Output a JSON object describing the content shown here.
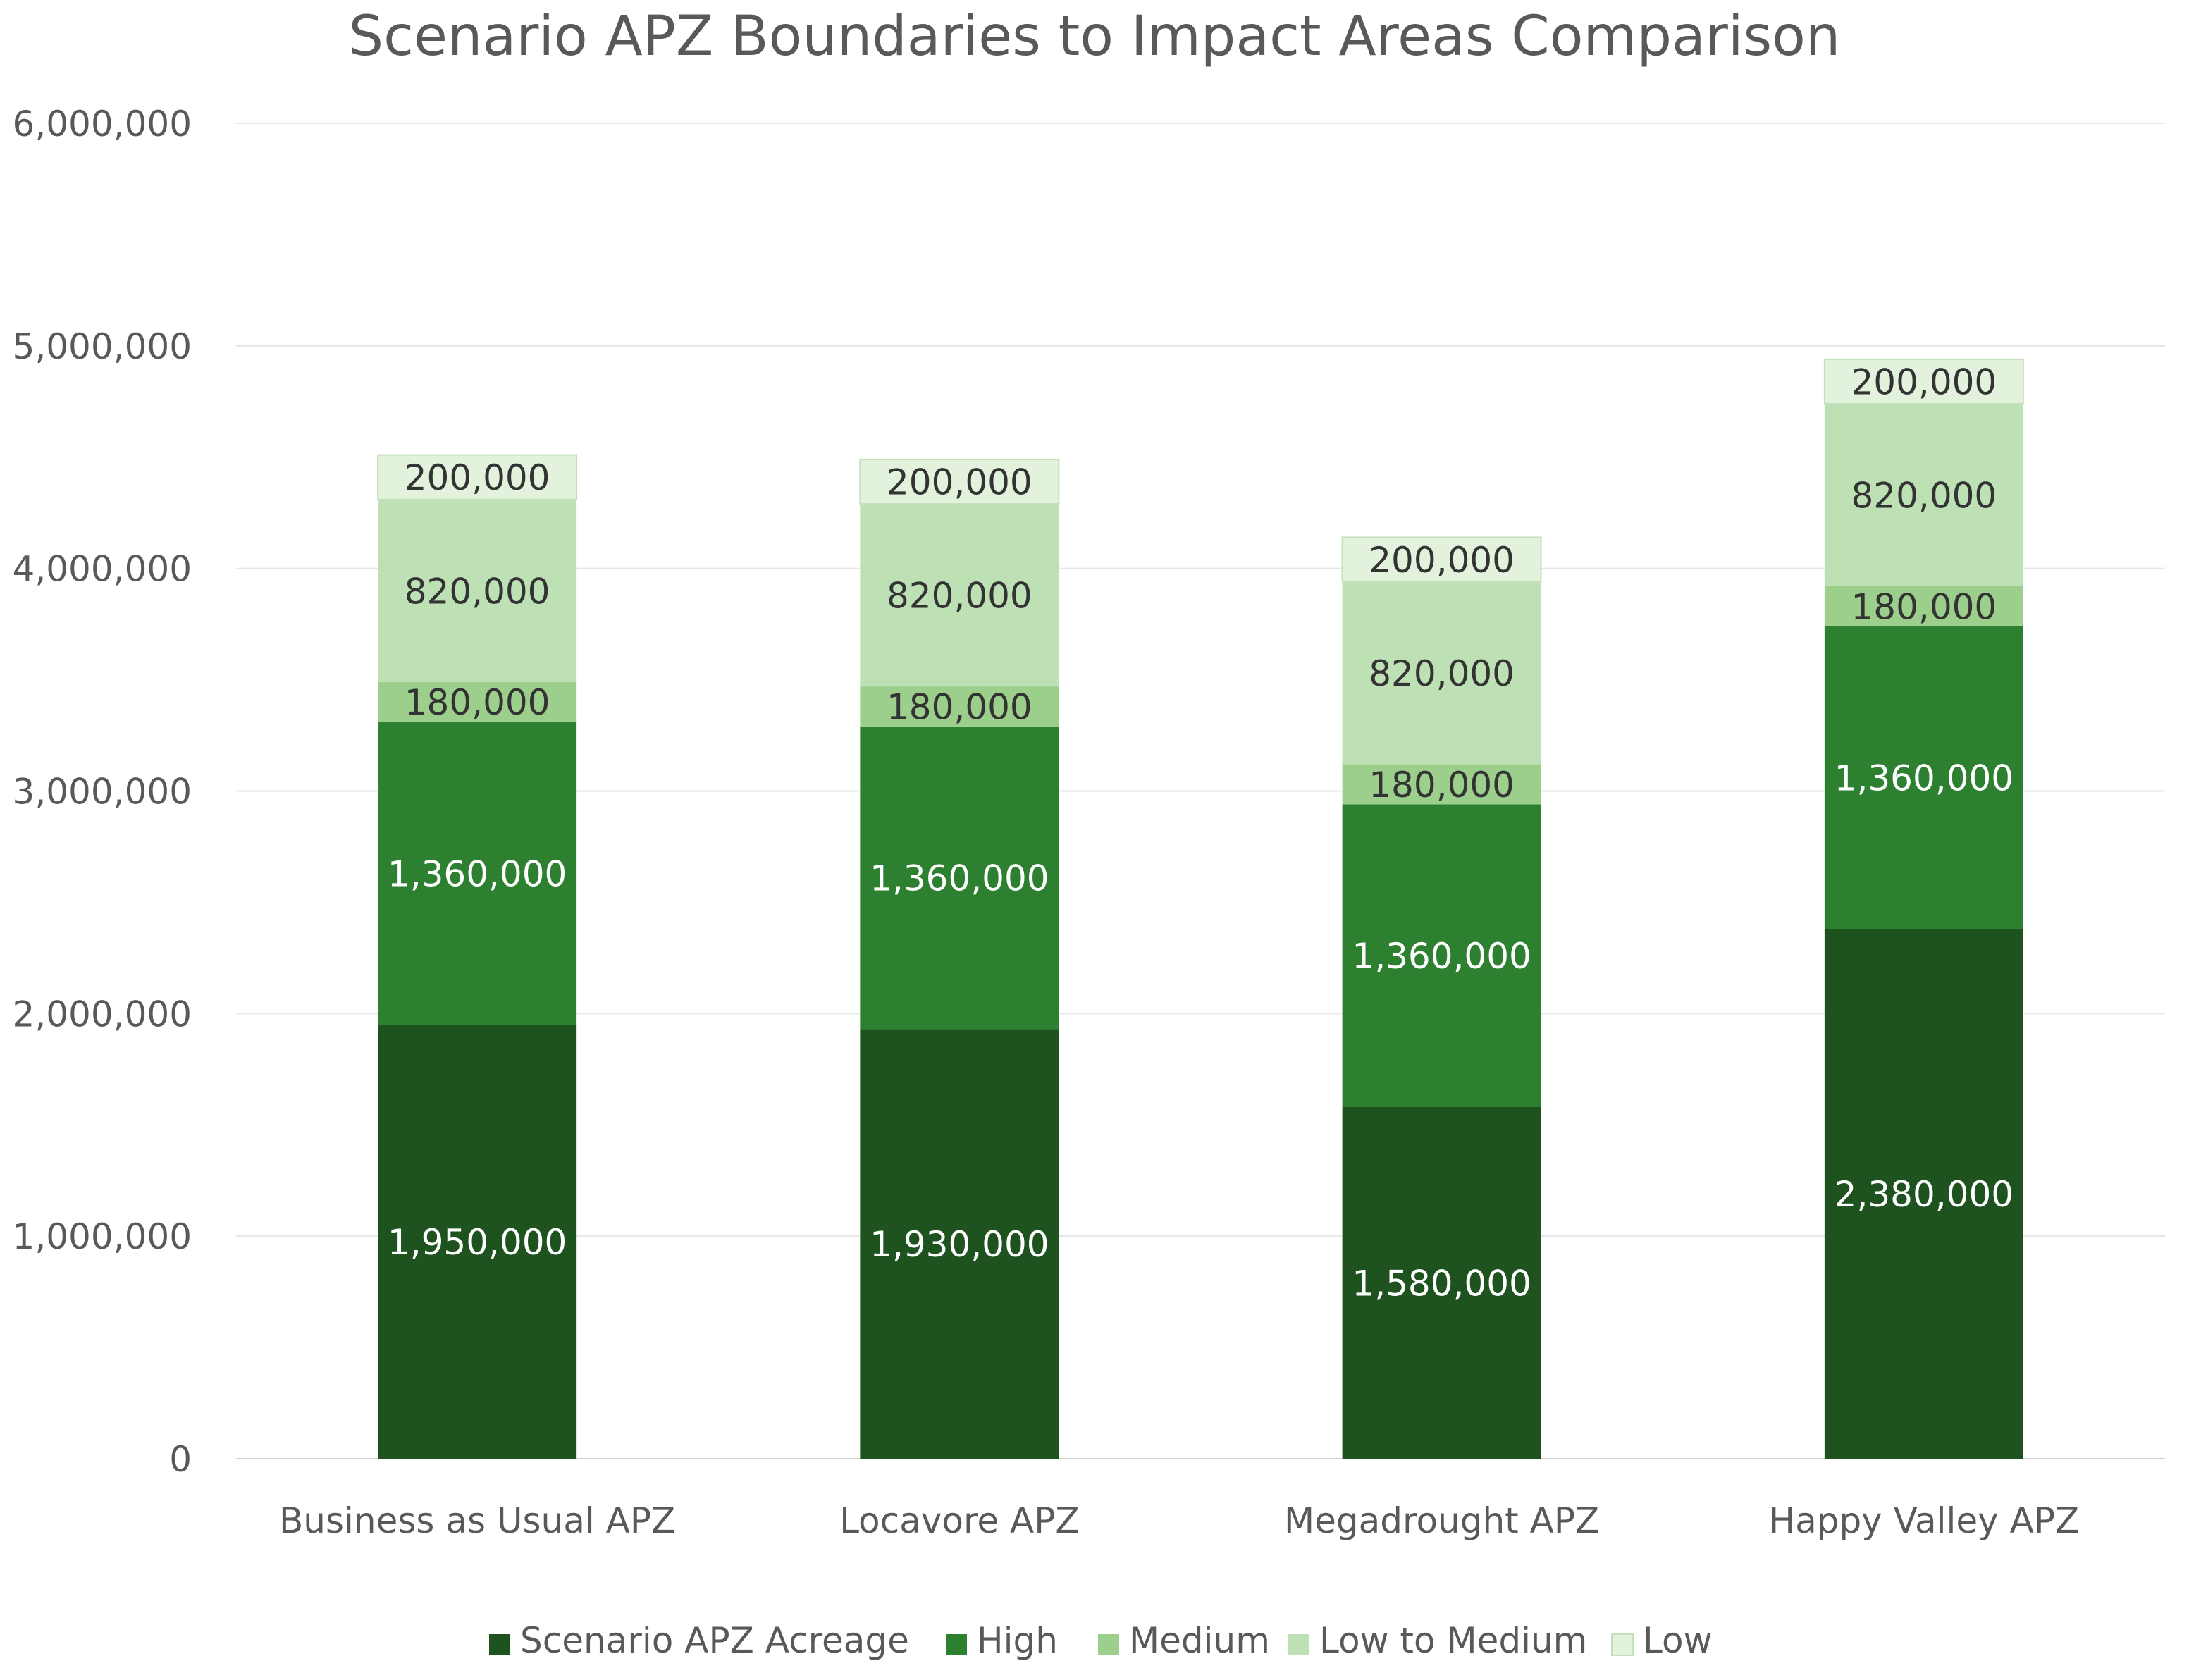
{
  "chart_data": {
    "type": "bar",
    "stacked": true,
    "title": "Scenario APZ Boundaries to Impact Areas Comparison",
    "xlabel": "",
    "ylabel": "",
    "ylim": [
      0,
      6000000
    ],
    "yticks": [
      0,
      1000000,
      2000000,
      3000000,
      4000000,
      5000000,
      6000000
    ],
    "ytick_labels": [
      "0",
      "1,000,000",
      "2,000,000",
      "3,000,000",
      "4,000,000",
      "5,000,000",
      "6,000,000"
    ],
    "grid": true,
    "legend_position": "bottom",
    "categories": [
      "Business as Usual APZ",
      "Locavore APZ",
      "Megadrought APZ",
      "Happy Valley APZ"
    ],
    "series": [
      {
        "name": "Scenario APZ Acreage",
        "color": "#1e5320",
        "label_color": "#ffffff",
        "values": [
          1950000,
          1930000,
          1580000,
          2380000
        ],
        "labels": [
          "1,950,000",
          "1,930,000",
          "1,580,000",
          "2,380,000"
        ]
      },
      {
        "name": "High",
        "color": "#2e8031",
        "label_color": "#ffffff",
        "values": [
          1360000,
          1360000,
          1360000,
          1360000
        ],
        "labels": [
          "1,360,000",
          "1,360,000",
          "1,360,000",
          "1,360,000"
        ]
      },
      {
        "name": "Medium",
        "color": "#9ccf8c",
        "label_color": "#333333",
        "values": [
          180000,
          180000,
          180000,
          180000
        ],
        "labels": [
          "180,000",
          "180,000",
          "180,000",
          "180,000"
        ]
      },
      {
        "name": "Low to Medium",
        "color": "#bde0b4",
        "label_color": "#333333",
        "values": [
          820000,
          820000,
          820000,
          820000
        ],
        "labels": [
          "820,000",
          "820,000",
          "820,000",
          "820,000"
        ]
      },
      {
        "name": "Low",
        "color": "#e3f2dd",
        "label_color": "#333333",
        "values": [
          200000,
          200000,
          200000,
          200000
        ],
        "labels": [
          "200,000",
          "200,000",
          "200,000",
          "200,000"
        ]
      }
    ]
  }
}
